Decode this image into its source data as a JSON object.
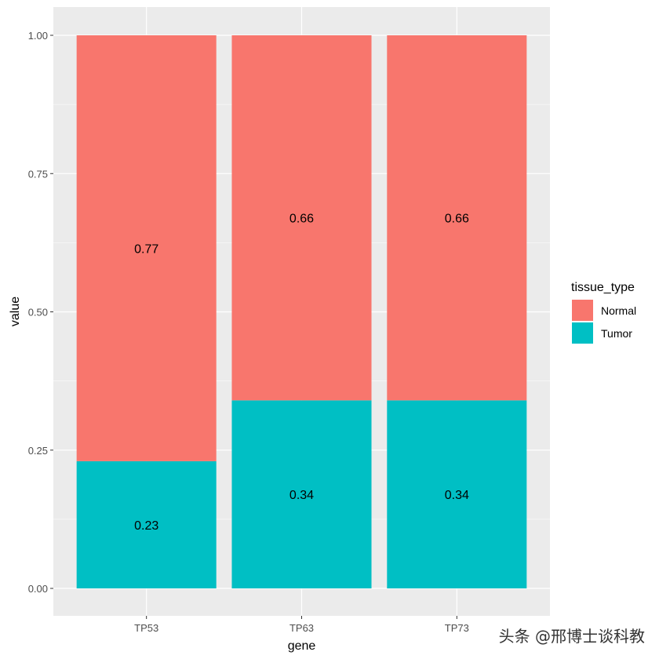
{
  "chart_data": {
    "type": "bar",
    "stacked": true,
    "categories": [
      "TP53",
      "TP63",
      "TP73"
    ],
    "series": [
      {
        "name": "Tumor",
        "values": [
          0.23,
          0.34,
          0.34
        ],
        "labels": [
          "0.23",
          "0.34",
          "0.34"
        ],
        "color": "#00BFC4"
      },
      {
        "name": "Normal",
        "values": [
          0.77,
          0.66,
          0.66
        ],
        "labels": [
          "0.77",
          "0.66",
          "0.66"
        ],
        "color": "#F8766D"
      }
    ],
    "xlabel": "gene",
    "ylabel": "value",
    "ylim": [
      0,
      1
    ],
    "yticks": [
      0,
      0.25,
      0.5,
      0.75,
      1
    ],
    "ytick_labels": [
      "0.00",
      "0.25",
      "0.50",
      "0.75",
      "1.00"
    ],
    "grid": true,
    "panel_background": "#EBEBEB",
    "legend": {
      "title": "tissue_type",
      "placement": "right",
      "entries": [
        {
          "label": "Normal",
          "color": "#F8766D"
        },
        {
          "label": "Tumor",
          "color": "#00BFC4"
        }
      ]
    }
  },
  "watermark": "头条 @邢博士谈科教"
}
